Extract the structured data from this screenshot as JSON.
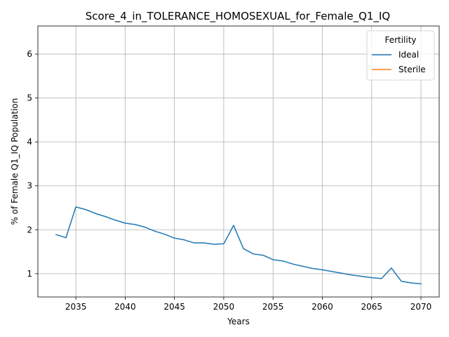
{
  "chart_data": {
    "type": "line",
    "title": "Score_4_in_TOLERANCE_HOMOSEXUAL_for_Female_Q1_IQ",
    "xlabel": "Years",
    "ylabel": "% of Female Q1_IQ Population",
    "xlim": [
      2031.15,
      2071.85
    ],
    "ylim": [
      0.47,
      6.64
    ],
    "xticks": [
      2035,
      2040,
      2045,
      2050,
      2055,
      2060,
      2065,
      2070
    ],
    "yticks": [
      1,
      2,
      3,
      4,
      5,
      6
    ],
    "grid": true,
    "legend": {
      "title": "Fertility",
      "placement": "top-right"
    },
    "series": [
      {
        "name": "Ideal",
        "color": "#1f77b4",
        "x": [
          2033,
          2034,
          2035,
          2036,
          2037,
          2038,
          2039,
          2040,
          2041,
          2042,
          2043,
          2044,
          2045,
          2046,
          2047,
          2048,
          2049,
          2050,
          2051,
          2052,
          2053,
          2054,
          2055,
          2056,
          2057,
          2058,
          2059,
          2060,
          2061,
          2062,
          2063,
          2064,
          2065,
          2066,
          2067,
          2068,
          2069,
          2070
        ],
        "values": [
          1.89,
          1.82,
          2.52,
          2.46,
          2.37,
          2.3,
          2.22,
          2.15,
          2.12,
          2.06,
          1.97,
          1.9,
          1.81,
          1.77,
          1.7,
          1.7,
          1.67,
          1.68,
          2.1,
          1.57,
          1.45,
          1.42,
          1.32,
          1.29,
          1.22,
          1.17,
          1.12,
          1.09,
          1.05,
          1.01,
          0.97,
          0.94,
          0.91,
          0.89,
          1.13,
          0.83,
          0.79,
          0.77
        ]
      },
      {
        "name": "Sterile",
        "color": "#ff7f0e",
        "x": [],
        "values": []
      }
    ]
  }
}
